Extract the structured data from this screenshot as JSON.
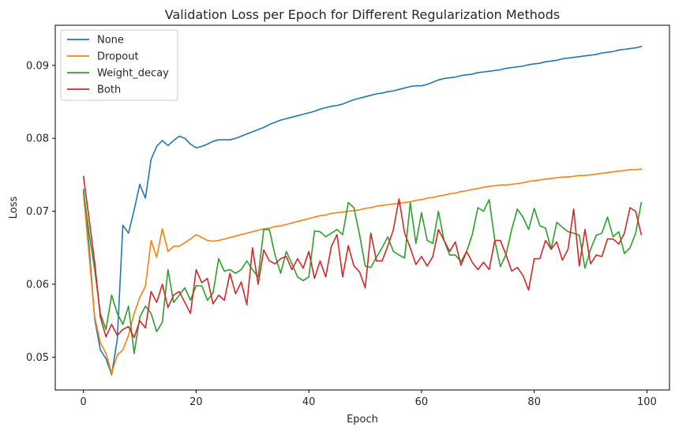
{
  "chart_data": {
    "type": "line",
    "title": "Validation Loss per Epoch for Different Regularization Methods",
    "xlabel": "Epoch",
    "ylabel": "Loss",
    "xlim": [
      -5,
      104
    ],
    "ylim": [
      0.0455,
      0.0955
    ],
    "xticks": [
      0,
      20,
      40,
      60,
      80,
      100
    ],
    "yticks": [
      0.05,
      0.06,
      0.07,
      0.08,
      0.09
    ],
    "ytick_labels": [
      "0.05",
      "0.06",
      "0.07",
      "0.08",
      "0.09"
    ],
    "legend_position": "upper-left",
    "grid": false,
    "series": [
      {
        "name": "None",
        "color": "#1f77b4",
        "values": [
          0.073,
          0.0652,
          0.0552,
          0.051,
          0.0498,
          0.0476,
          0.0524,
          0.0681,
          0.067,
          0.0702,
          0.0737,
          0.0718,
          0.0771,
          0.0789,
          0.0797,
          0.079,
          0.0797,
          0.0803,
          0.08,
          0.0792,
          0.0787,
          0.0789,
          0.0792,
          0.0796,
          0.0798,
          0.0798,
          0.0798,
          0.08,
          0.0803,
          0.0806,
          0.0809,
          0.0812,
          0.0815,
          0.0819,
          0.0822,
          0.0825,
          0.0827,
          0.0829,
          0.0831,
          0.0833,
          0.0835,
          0.0837,
          0.084,
          0.0842,
          0.0844,
          0.0845,
          0.0847,
          0.085,
          0.0853,
          0.0855,
          0.0857,
          0.0859,
          0.0861,
          0.0862,
          0.0864,
          0.0865,
          0.0867,
          0.0869,
          0.0871,
          0.0872,
          0.0872,
          0.0874,
          0.0877,
          0.088,
          0.0882,
          0.0883,
          0.0884,
          0.0886,
          0.0887,
          0.0888,
          0.089,
          0.0891,
          0.0892,
          0.0893,
          0.0894,
          0.0896,
          0.0897,
          0.0898,
          0.0899,
          0.0901,
          0.0902,
          0.0903,
          0.0905,
          0.0906,
          0.0907,
          0.0909,
          0.091,
          0.0911,
          0.0912,
          0.0913,
          0.0914,
          0.0915,
          0.0917,
          0.0918,
          0.0919,
          0.0921,
          0.0922,
          0.0923,
          0.0924,
          0.0926
        ]
      },
      {
        "name": "Dropout",
        "color": "#ff7f0e",
        "values": [
          0.0725,
          0.064,
          0.0555,
          0.052,
          0.0505,
          0.0478,
          0.0503,
          0.051,
          0.053,
          0.056,
          0.0582,
          0.0597,
          0.066,
          0.0637,
          0.0676,
          0.0645,
          0.0652,
          0.0652,
          0.0657,
          0.0662,
          0.0668,
          0.0664,
          0.066,
          0.0659,
          0.066,
          0.0662,
          0.0664,
          0.0666,
          0.0668,
          0.067,
          0.0672,
          0.0674,
          0.0676,
          0.0677,
          0.0679,
          0.068,
          0.0682,
          0.0684,
          0.0686,
          0.0688,
          0.069,
          0.0692,
          0.0694,
          0.0695,
          0.0697,
          0.0698,
          0.0699,
          0.07,
          0.0701,
          0.0702,
          0.0704,
          0.0705,
          0.0707,
          0.0708,
          0.0709,
          0.071,
          0.0711,
          0.0712,
          0.0713,
          0.0715,
          0.0716,
          0.0718,
          0.0719,
          0.0721,
          0.0722,
          0.0724,
          0.0725,
          0.0727,
          0.0728,
          0.073,
          0.0731,
          0.0733,
          0.0734,
          0.0735,
          0.0736,
          0.0736,
          0.0737,
          0.0738,
          0.0739,
          0.0741,
          0.0742,
          0.0743,
          0.0744,
          0.0745,
          0.0746,
          0.0747,
          0.0747,
          0.0748,
          0.0749,
          0.0749,
          0.075,
          0.0751,
          0.0752,
          0.0753,
          0.0754,
          0.0755,
          0.0756,
          0.0757,
          0.0757,
          0.0758
        ]
      },
      {
        "name": "Weight_decay",
        "color": "#2ca02c",
        "values": [
          0.0728,
          0.067,
          0.062,
          0.056,
          0.0538,
          0.0585,
          0.056,
          0.0545,
          0.057,
          0.0505,
          0.0555,
          0.057,
          0.056,
          0.0535,
          0.0548,
          0.062,
          0.0575,
          0.0585,
          0.0595,
          0.0578,
          0.0598,
          0.0598,
          0.0578,
          0.0588,
          0.0635,
          0.0618,
          0.062,
          0.0615,
          0.062,
          0.0632,
          0.062,
          0.061,
          0.0675,
          0.0675,
          0.064,
          0.0615,
          0.0645,
          0.0628,
          0.061,
          0.0605,
          0.061,
          0.0673,
          0.0672,
          0.0665,
          0.067,
          0.0675,
          0.0668,
          0.0712,
          0.0705,
          0.0668,
          0.0625,
          0.0623,
          0.0637,
          0.065,
          0.0665,
          0.0645,
          0.064,
          0.0636,
          0.0712,
          0.0656,
          0.0698,
          0.066,
          0.0656,
          0.07,
          0.066,
          0.064,
          0.064,
          0.0631,
          0.0645,
          0.0668,
          0.0705,
          0.07,
          0.0716,
          0.066,
          0.0624,
          0.0641,
          0.0675,
          0.0703,
          0.0692,
          0.0675,
          0.0704,
          0.068,
          0.0677,
          0.0648,
          0.0685,
          0.0678,
          0.0672,
          0.067,
          0.0667,
          0.0622,
          0.0648,
          0.0667,
          0.067,
          0.0692,
          0.0665,
          0.0672,
          0.0642,
          0.065,
          0.067,
          0.0712
        ]
      },
      {
        "name": "Both",
        "color": "#d62728",
        "values": [
          0.0748,
          0.069,
          0.063,
          0.0555,
          0.0528,
          0.0545,
          0.053,
          0.0538,
          0.0542,
          0.0527,
          0.055,
          0.054,
          0.059,
          0.0575,
          0.06,
          0.0568,
          0.0585,
          0.059,
          0.0575,
          0.056,
          0.062,
          0.0602,
          0.0608,
          0.0573,
          0.0585,
          0.0578,
          0.0615,
          0.0587,
          0.0603,
          0.0572,
          0.065,
          0.06,
          0.0647,
          0.0632,
          0.0628,
          0.0635,
          0.0638,
          0.062,
          0.0635,
          0.0622,
          0.0645,
          0.0608,
          0.0632,
          0.061,
          0.0652,
          0.0668,
          0.061,
          0.0653,
          0.0625,
          0.0617,
          0.0595,
          0.067,
          0.0632,
          0.0632,
          0.0652,
          0.0675,
          0.0717,
          0.067,
          0.065,
          0.0627,
          0.0638,
          0.0625,
          0.0638,
          0.0675,
          0.066,
          0.0645,
          0.0658,
          0.0626,
          0.0645,
          0.063,
          0.062,
          0.063,
          0.062,
          0.066,
          0.066,
          0.064,
          0.0618,
          0.0623,
          0.0612,
          0.0592,
          0.0635,
          0.0635,
          0.066,
          0.0648,
          0.0658,
          0.0633,
          0.0648,
          0.0703,
          0.0625,
          0.0675,
          0.0628,
          0.064,
          0.0638,
          0.0662,
          0.0662,
          0.0655,
          0.067,
          0.0705,
          0.07,
          0.0668
        ]
      }
    ]
  }
}
